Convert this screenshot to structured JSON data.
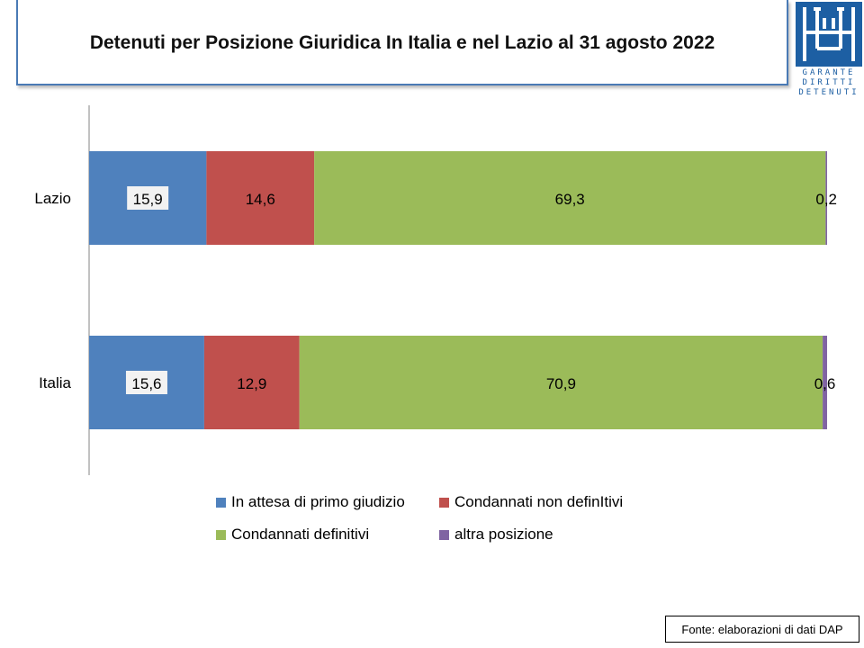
{
  "title": "Detenuti per Posizione Giuridica  In Italia e nel Lazio al 31 agosto 2022",
  "logo": {
    "lines": [
      "GARANTE",
      "DIRITTI",
      "DETENUTI"
    ]
  },
  "source": "Fonte: elaborazioni di dati DAP",
  "colors": {
    "blue": "#4f81bd",
    "red": "#c0504d",
    "green": "#9bbb59",
    "purple": "#8064a2",
    "logo": "#1d5fa3"
  },
  "chart_data": {
    "type": "bar",
    "orientation": "horizontal",
    "stacked": "percent",
    "categories": [
      "Lazio",
      "Italia"
    ],
    "series": [
      {
        "name": "In attesa di primo giudizio",
        "color": "#4f81bd",
        "values": [
          15.9,
          15.6
        ],
        "labels": [
          "15,9",
          "15,6"
        ]
      },
      {
        "name": "Condannati non definItivi",
        "color": "#c0504d",
        "values": [
          14.6,
          12.9
        ],
        "labels": [
          "14,6",
          "12,9"
        ]
      },
      {
        "name": "Condannati definitivi",
        "color": "#9bbb59",
        "values": [
          69.3,
          70.9
        ],
        "labels": [
          "69,3",
          "70,9"
        ]
      },
      {
        "name": "altra posizione",
        "color": "#8064a2",
        "values": [
          0.2,
          0.6
        ],
        "labels": [
          "0,2",
          "0,6"
        ]
      }
    ],
    "legend_position": "bottom",
    "grid": false
  }
}
